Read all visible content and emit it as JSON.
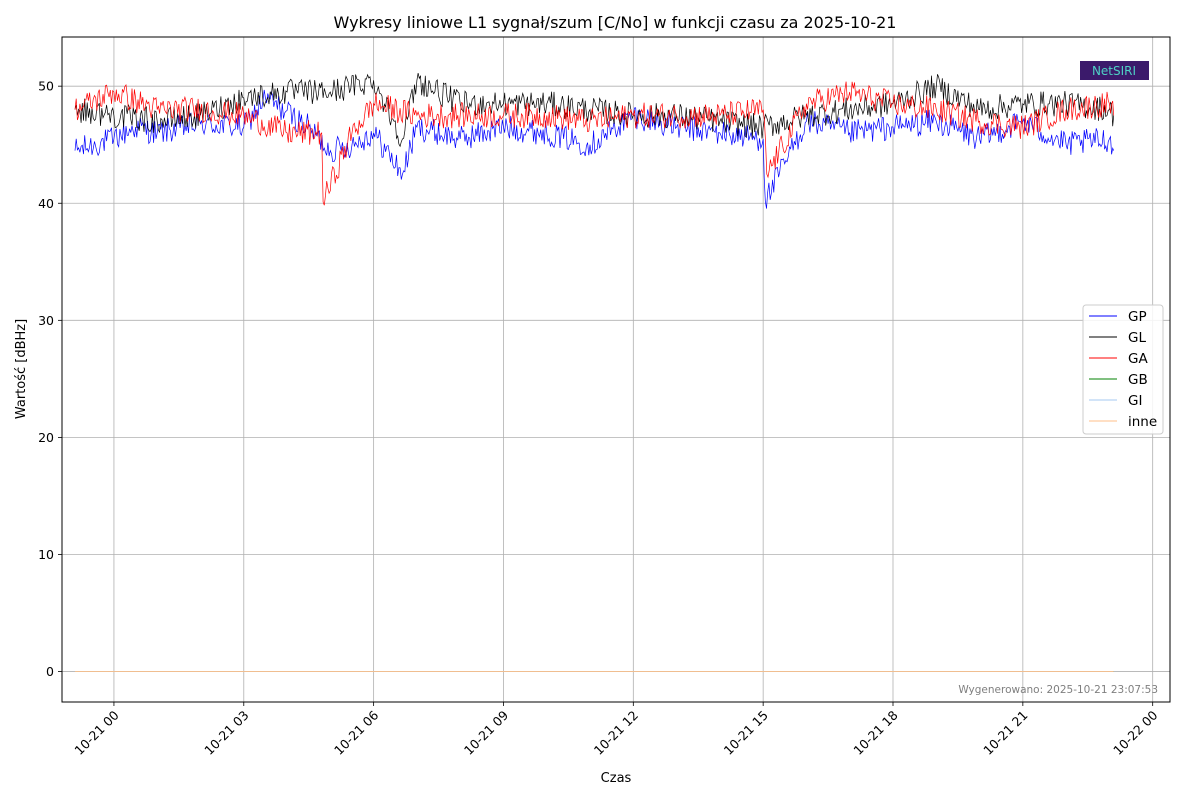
{
  "chart_data": {
    "type": "line",
    "title": "Wykresy liniowe L1 sygnał/szum [C/No] w funkcji czasu za 2025-10-21",
    "xlabel": "Czas",
    "ylabel": "Wartość [dBHz]",
    "xlim": [
      "2025-10-20T22:48",
      "2025-10-22T00:24"
    ],
    "ylim": [
      -2.6,
      54.2
    ],
    "x_ticks": [
      "10-21 00",
      "10-21 03",
      "10-21 06",
      "10-21 09",
      "10-21 12",
      "10-21 15",
      "10-21 18",
      "10-21 21",
      "10-22 00"
    ],
    "y_ticks": [
      0,
      10,
      20,
      30,
      40,
      50
    ],
    "grid": true,
    "legend_position": "center-right",
    "series": [
      {
        "name": "GP",
        "color": "#0000ff",
        "x": [
          "2025-10-20T23:06",
          "2025-10-21T00:00",
          "2025-10-21T00:30",
          "2025-10-21T01:00",
          "2025-10-21T02:00",
          "2025-10-21T03:00",
          "2025-10-21T03:30",
          "2025-10-21T04:30",
          "2025-10-21T05:00",
          "2025-10-21T05:30",
          "2025-10-21T06:00",
          "2025-10-21T06:40",
          "2025-10-21T07:00",
          "2025-10-21T08:00",
          "2025-10-21T09:00",
          "2025-10-21T10:00",
          "2025-10-21T11:00",
          "2025-10-21T12:00",
          "2025-10-21T13:00",
          "2025-10-21T14:00",
          "2025-10-21T15:00",
          "2025-10-21T15:03",
          "2025-10-21T16:00",
          "2025-10-21T17:00",
          "2025-10-21T18:00",
          "2025-10-21T19:00",
          "2025-10-21T20:00",
          "2025-10-21T21:00",
          "2025-10-21T22:00",
          "2025-10-21T23:00",
          "2025-10-21T23:06"
        ],
        "y": [
          44.5,
          45.5,
          46.5,
          46.0,
          46.8,
          46.5,
          49.0,
          46.5,
          44.5,
          45.0,
          46.0,
          42.5,
          46.5,
          45.5,
          46.5,
          46.0,
          45.0,
          47.5,
          46.5,
          46.0,
          45.5,
          40.2,
          47.0,
          46.0,
          46.5,
          47.0,
          45.5,
          47.0,
          45.0,
          45.5,
          44.5
        ]
      },
      {
        "name": "GL",
        "color": "#000000",
        "x": [
          "2025-10-20T23:06",
          "2025-10-21T00:00",
          "2025-10-21T01:00",
          "2025-10-21T02:00",
          "2025-10-21T03:00",
          "2025-10-21T04:00",
          "2025-10-21T05:00",
          "2025-10-21T06:00",
          "2025-10-21T06:40",
          "2025-10-21T07:00",
          "2025-10-21T08:00",
          "2025-10-21T09:00",
          "2025-10-21T10:00",
          "2025-10-21T11:00",
          "2025-10-21T12:00",
          "2025-10-21T13:00",
          "2025-10-21T14:00",
          "2025-10-21T15:00",
          "2025-10-21T16:00",
          "2025-10-21T17:00",
          "2025-10-21T18:00",
          "2025-10-21T19:00",
          "2025-10-21T20:00",
          "2025-10-21T21:00",
          "2025-10-21T22:00",
          "2025-10-21T23:00",
          "2025-10-21T23:06"
        ],
        "y": [
          48.0,
          47.5,
          47.0,
          47.5,
          49.0,
          49.5,
          49.5,
          50.5,
          45.5,
          50.5,
          48.5,
          48.5,
          48.5,
          48.0,
          47.5,
          47.5,
          47.0,
          46.5,
          47.5,
          48.0,
          48.5,
          50.0,
          48.0,
          48.5,
          48.5,
          48.0,
          47.5
        ]
      },
      {
        "name": "GA",
        "color": "#ff0000",
        "x": [
          "2025-10-20T23:06",
          "2025-10-21T00:00",
          "2025-10-21T01:00",
          "2025-10-21T02:00",
          "2025-10-21T03:00",
          "2025-10-21T04:00",
          "2025-10-21T04:48",
          "2025-10-21T04:50",
          "2025-10-21T05:30",
          "2025-10-21T06:00",
          "2025-10-21T07:00",
          "2025-10-21T08:00",
          "2025-10-21T09:00",
          "2025-10-21T10:00",
          "2025-10-21T11:00",
          "2025-10-21T12:00",
          "2025-10-21T13:00",
          "2025-10-21T14:00",
          "2025-10-21T15:00",
          "2025-10-21T15:05",
          "2025-10-21T16:00",
          "2025-10-21T17:00",
          "2025-10-21T18:00",
          "2025-10-21T19:00",
          "2025-10-21T20:00",
          "2025-10-21T21:00",
          "2025-10-21T22:00",
          "2025-10-21T23:00",
          "2025-10-21T23:06"
        ],
        "y": [
          48.0,
          49.5,
          48.0,
          48.0,
          47.5,
          46.0,
          46.0,
          40.1,
          46.0,
          48.5,
          47.5,
          47.5,
          47.5,
          47.5,
          47.0,
          47.5,
          47.5,
          47.5,
          48.0,
          42.5,
          48.5,
          49.5,
          48.5,
          48.0,
          47.0,
          46.5,
          48.0,
          48.5,
          47.5
        ]
      },
      {
        "name": "GB",
        "color": "#008000",
        "x": [
          "2025-10-20T23:06",
          "2025-10-21T23:06"
        ],
        "y": [
          0,
          0
        ]
      },
      {
        "name": "GI",
        "color": "#a6c8f0",
        "x": [
          "2025-10-20T23:06",
          "2025-10-21T23:06"
        ],
        "y": [
          0,
          0
        ]
      },
      {
        "name": "inne",
        "color": "#ffbf8a",
        "x": [
          "2025-10-20T23:06",
          "2025-10-21T23:06"
        ],
        "y": [
          0,
          0
        ]
      }
    ]
  },
  "footer_note": "Wygenerowano: 2025-10-21 23:07:53",
  "logo": {
    "text": "NetSIRI",
    "background": "#3b1a6b",
    "text_color": "#4fd1c5"
  }
}
